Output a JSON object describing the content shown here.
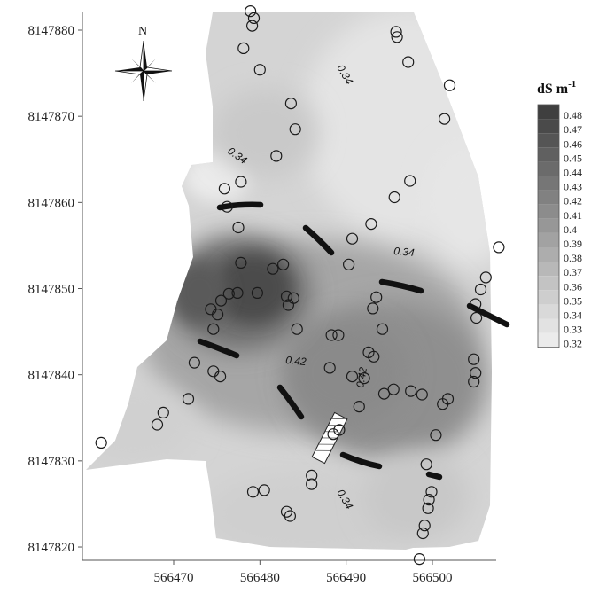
{
  "chart_data": {
    "type": "heatmap",
    "x_ticks": [
      "566470",
      "566480",
      "566490",
      "566500"
    ],
    "y_ticks": [
      "8147820",
      "8147830",
      "8147840",
      "8147850",
      "8147860",
      "8147870",
      "8147880"
    ],
    "north_label": "N",
    "legend": {
      "unit": "dS m",
      "unit_exponent": "-1",
      "values": [
        "0.48",
        "0.47",
        "0.46",
        "0.45",
        "0.44",
        "0.43",
        "0.42",
        "0.41",
        "0.4",
        "0.39",
        "0.38",
        "0.37",
        "0.36",
        "0.35",
        "0.34",
        "0.33",
        "0.32"
      ],
      "colors": [
        "#3f3f3f",
        "#4a4a4a",
        "#555555",
        "#606060",
        "#6b6b6b",
        "#767676",
        "#818181",
        "#8c8c8c",
        "#979797",
        "#a2a2a2",
        "#adadad",
        "#b8b8b8",
        "#c3c3c3",
        "#cecece",
        "#d9d9d9",
        "#e2e2e2",
        "#ebebeb"
      ]
    },
    "contour_labels": [
      "0.34",
      "0.34",
      "0.34",
      "0.42",
      "0.42",
      "0.34"
    ],
    "sample_points": [
      [
        566478.9,
        8147882.2
      ],
      [
        566479.3,
        8147881.4
      ],
      [
        566479.1,
        8147880.5
      ],
      [
        566478.1,
        8147877.9
      ],
      [
        566480.0,
        8147875.4
      ],
      [
        566495.8,
        8147879.8
      ],
      [
        566495.9,
        8147879.2
      ],
      [
        566497.2,
        8147876.3
      ],
      [
        566502.0,
        8147873.6
      ],
      [
        566501.4,
        8147869.7
      ],
      [
        566483.6,
        8147871.5
      ],
      [
        566484.1,
        8147868.5
      ],
      [
        566481.9,
        8147865.4
      ],
      [
        566497.4,
        8147862.5
      ],
      [
        566495.6,
        8147860.6
      ],
      [
        566477.8,
        8147862.4
      ],
      [
        566475.9,
        8147861.6
      ],
      [
        566476.2,
        8147859.5
      ],
      [
        566477.5,
        8147857.1
      ],
      [
        566492.9,
        8147857.5
      ],
      [
        566490.7,
        8147855.8
      ],
      [
        566507.7,
        8147854.8
      ],
      [
        566477.8,
        8147853.0
      ],
      [
        566490.3,
        8147852.8
      ],
      [
        566481.5,
        8147852.3
      ],
      [
        566482.7,
        8147852.8
      ],
      [
        566506.2,
        8147851.3
      ],
      [
        566505.6,
        8147849.9
      ],
      [
        566477.4,
        8147849.5
      ],
      [
        566479.7,
        8147849.5
      ],
      [
        566483.1,
        8147849.1
      ],
      [
        566483.9,
        8147848.9
      ],
      [
        566476.4,
        8147849.4
      ],
      [
        566475.5,
        8147848.6
      ],
      [
        566474.3,
        8147847.6
      ],
      [
        566475.1,
        8147847.0
      ],
      [
        566483.3,
        8147848.1
      ],
      [
        566493.5,
        8147849.0
      ],
      [
        566493.1,
        8147847.7
      ],
      [
        566505.0,
        8147848.2
      ],
      [
        566505.1,
        8147846.6
      ],
      [
        566484.3,
        8147845.3
      ],
      [
        566474.6,
        8147845.3
      ],
      [
        566488.3,
        8147844.6
      ],
      [
        566489.1,
        8147844.6
      ],
      [
        566494.2,
        8147845.3
      ],
      [
        566492.6,
        8147842.6
      ],
      [
        566493.2,
        8147842.1
      ],
      [
        566472.4,
        8147841.4
      ],
      [
        566474.6,
        8147840.4
      ],
      [
        566475.4,
        8147839.8
      ],
      [
        566504.8,
        8147841.8
      ],
      [
        566488.1,
        8147840.8
      ],
      [
        566490.7,
        8147839.8
      ],
      [
        566492.1,
        8147839.6
      ],
      [
        566505.0,
        8147840.2
      ],
      [
        566504.8,
        8147839.2
      ],
      [
        566494.4,
        8147837.8
      ],
      [
        566495.5,
        8147838.3
      ],
      [
        566497.5,
        8147838.1
      ],
      [
        566498.8,
        8147837.7
      ],
      [
        566501.2,
        8147836.6
      ],
      [
        566501.8,
        8147837.2
      ],
      [
        566491.5,
        8147836.3
      ],
      [
        566471.7,
        8147837.2
      ],
      [
        566468.8,
        8147835.6
      ],
      [
        566468.1,
        8147834.2
      ],
      [
        566500.4,
        8147833.0
      ],
      [
        566488.5,
        8147833.1
      ],
      [
        566489.2,
        8147833.6
      ],
      [
        566461.6,
        8147832.1
      ],
      [
        566499.3,
        8147829.6
      ],
      [
        566486.0,
        8147828.3
      ],
      [
        566486.0,
        8147827.3
      ],
      [
        566479.2,
        8147826.4
      ],
      [
        566480.5,
        8147826.6
      ],
      [
        566483.1,
        8147824.1
      ],
      [
        566483.5,
        8147823.6
      ],
      [
        566499.9,
        8147826.4
      ],
      [
        566499.6,
        8147825.5
      ],
      [
        566499.5,
        8147824.5
      ],
      [
        566499.1,
        8147822.5
      ],
      [
        566498.9,
        8147821.6
      ],
      [
        566498.5,
        8147818.6
      ]
    ]
  }
}
